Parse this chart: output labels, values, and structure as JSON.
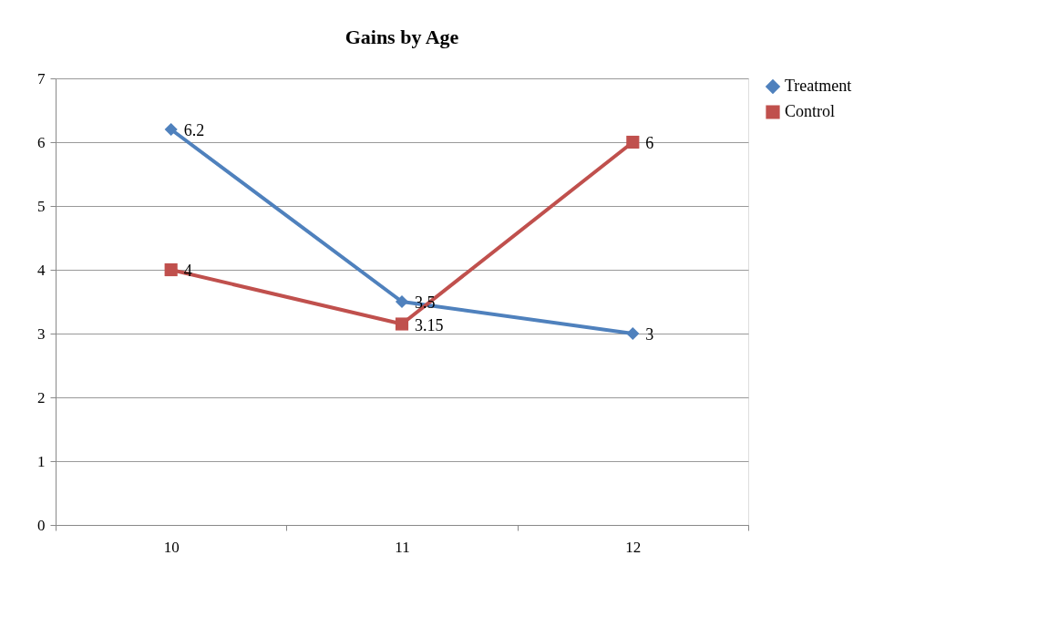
{
  "chart_data": {
    "type": "line",
    "title": "Gains by Age",
    "categories": [
      "10",
      "11",
      "12"
    ],
    "series": [
      {
        "name": "Treatment",
        "color": "#4f81bd",
        "marker": "diamond",
        "values": [
          6.2,
          3.5,
          3
        ]
      },
      {
        "name": "Control",
        "color": "#c0504d",
        "marker": "square",
        "values": [
          4,
          3.15,
          6
        ]
      }
    ],
    "ylim": [
      0,
      7
    ],
    "yticks": [
      0,
      1,
      2,
      3,
      4,
      5,
      6,
      7
    ],
    "grid": "y",
    "legend": "right",
    "data_labels": true,
    "line_style": "solid"
  }
}
